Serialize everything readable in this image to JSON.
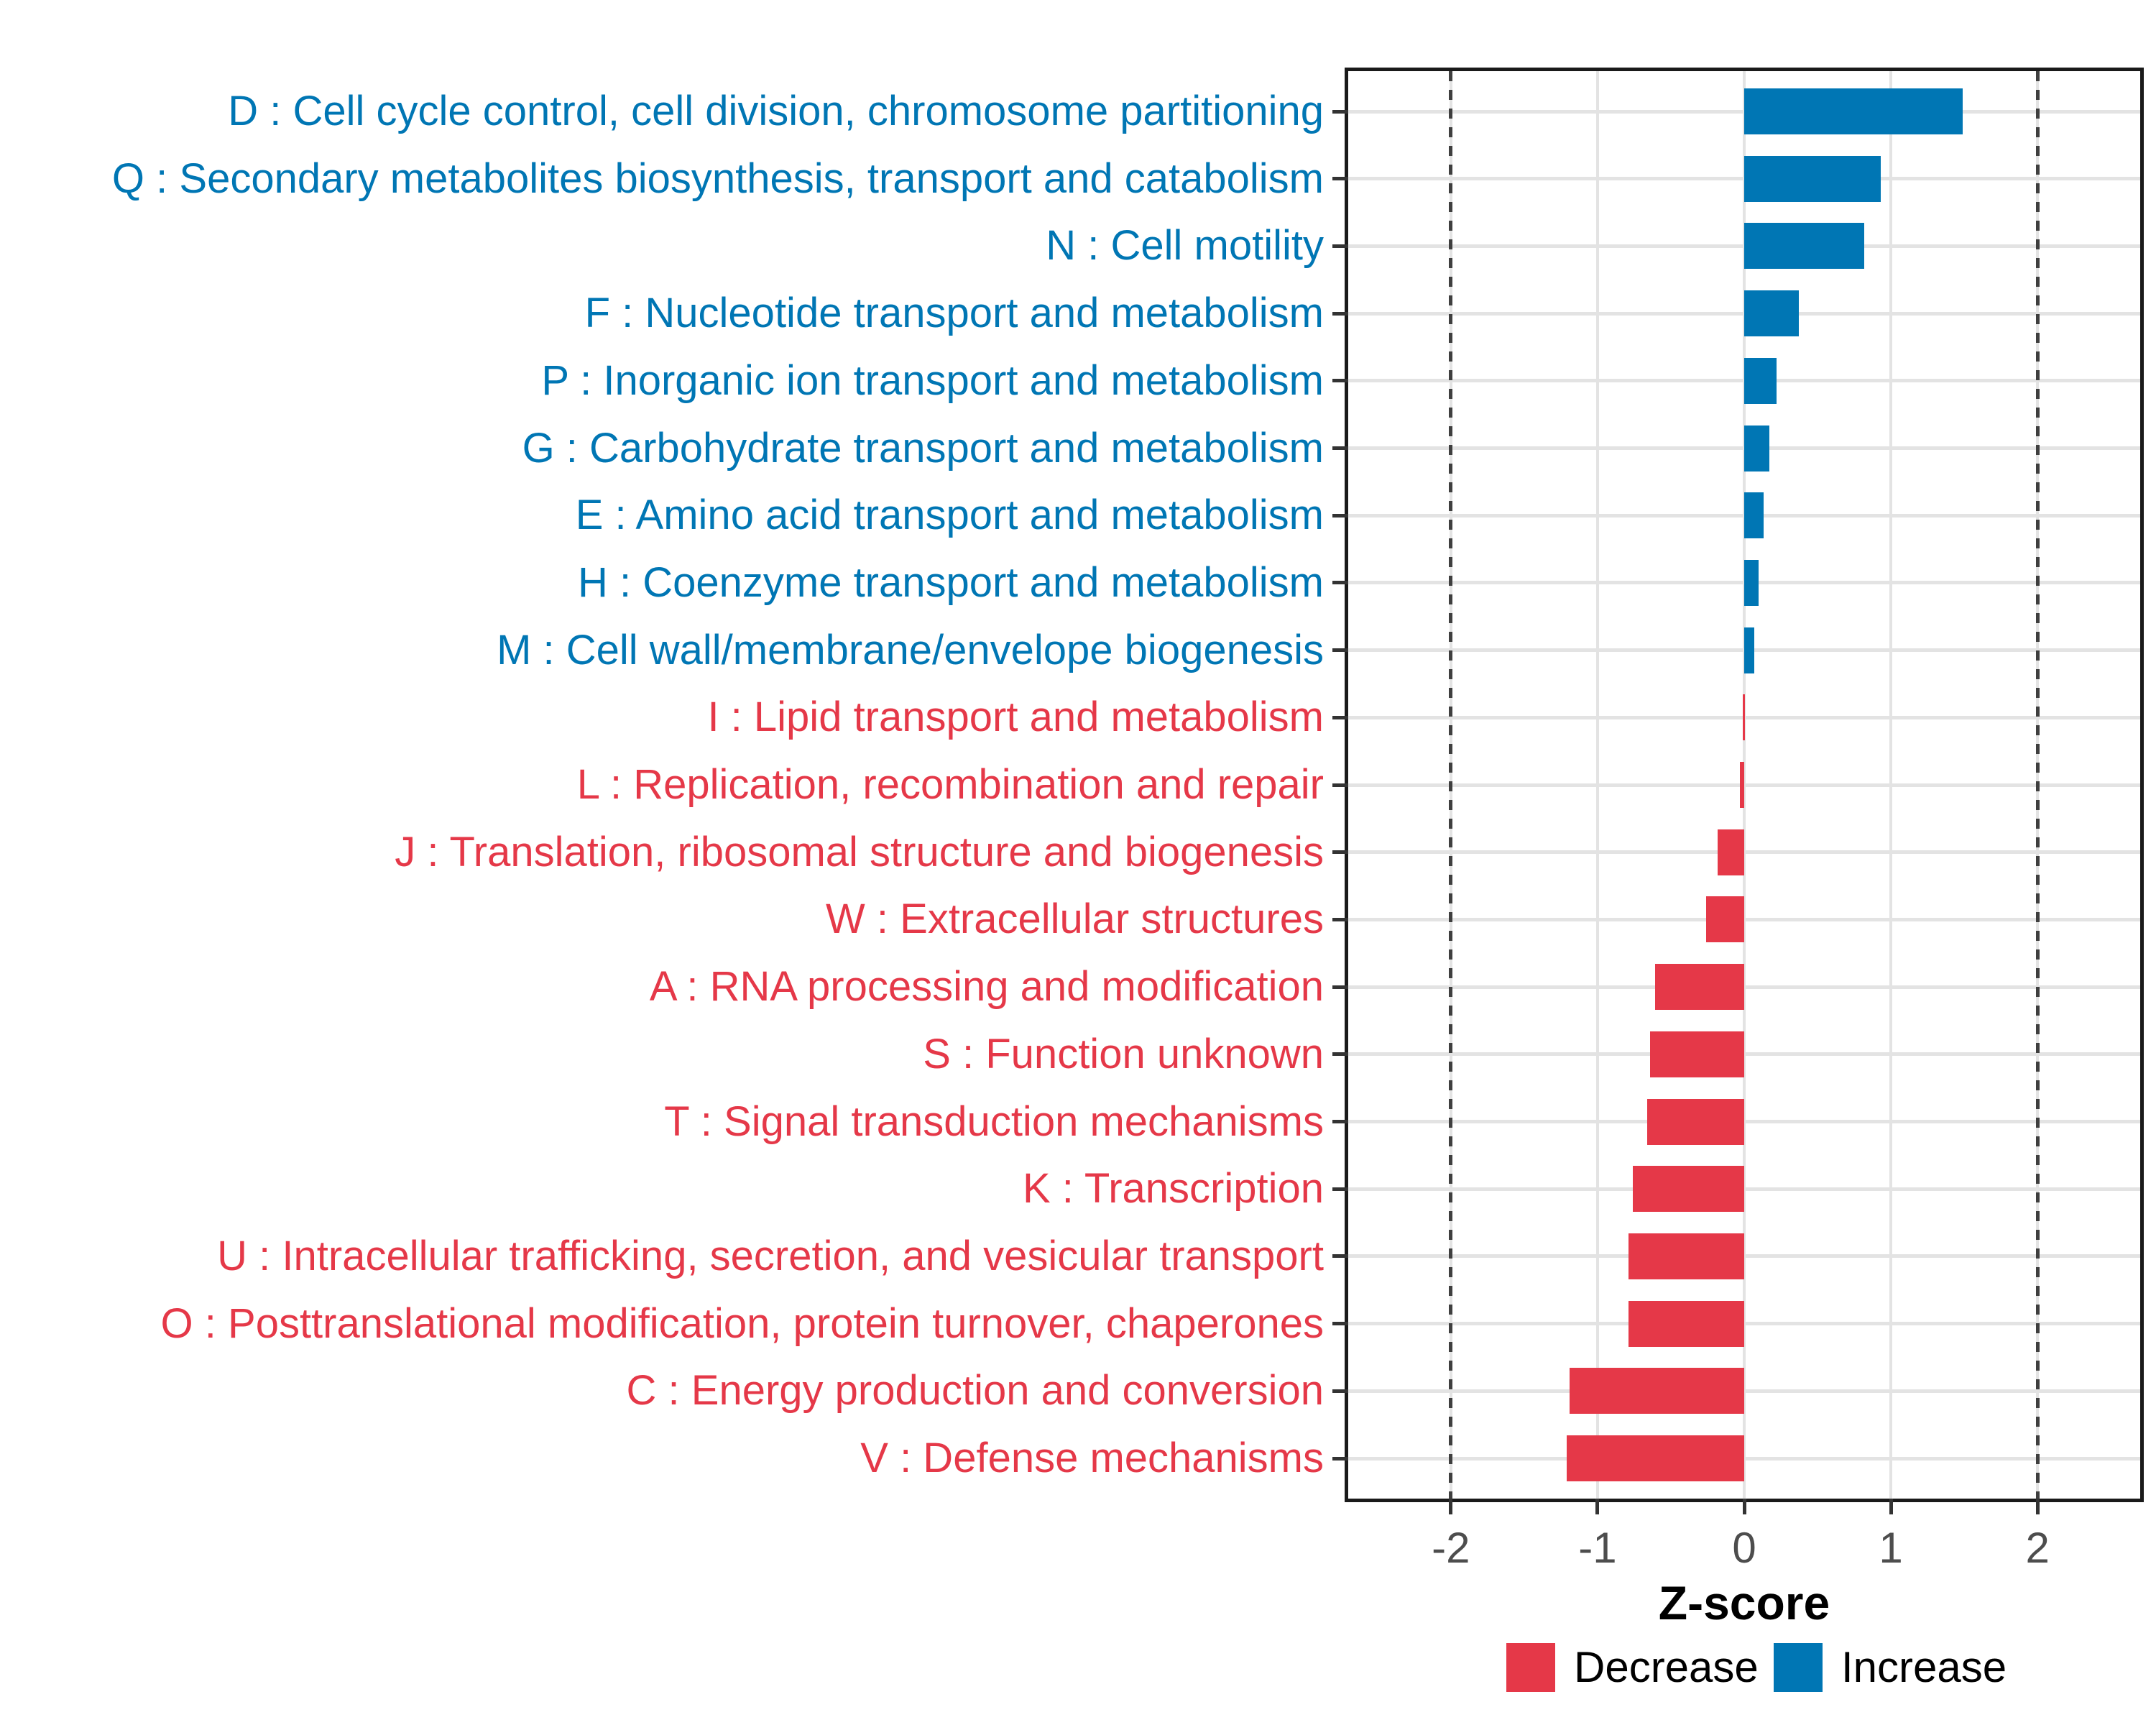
{
  "chart_data": {
    "type": "bar",
    "orientation": "horizontal",
    "title": "",
    "xlabel": "Z-score",
    "ylabel": "",
    "xlim": [
      -2.7,
      2.7
    ],
    "x_ticks": [
      -2,
      -1,
      0,
      1,
      2
    ],
    "reference_lines": [
      -2,
      2
    ],
    "grid": "major gridlines, light gray",
    "legend_position": "bottom-right",
    "legend": [
      {
        "label": "Decrease",
        "color": "#e53848"
      },
      {
        "label": "Increase",
        "color": "#0076b4"
      }
    ],
    "categories": [
      {
        "code": "D",
        "label": "D : Cell cycle control, cell division, chromosome partitioning",
        "value": 1.49,
        "direction": "Increase"
      },
      {
        "code": "Q",
        "label": "Q : Secondary metabolites biosynthesis, transport and catabolism",
        "value": 0.93,
        "direction": "Increase"
      },
      {
        "code": "N",
        "label": "N : Cell motility",
        "value": 0.82,
        "direction": "Increase"
      },
      {
        "code": "F",
        "label": "F : Nucleotide transport and metabolism",
        "value": 0.37,
        "direction": "Increase"
      },
      {
        "code": "P",
        "label": "P : Inorganic ion transport and metabolism",
        "value": 0.22,
        "direction": "Increase"
      },
      {
        "code": "G",
        "label": "G : Carbohydrate transport and metabolism",
        "value": 0.17,
        "direction": "Increase"
      },
      {
        "code": "E",
        "label": "E : Amino acid transport and metabolism",
        "value": 0.13,
        "direction": "Increase"
      },
      {
        "code": "H",
        "label": "H : Coenzyme transport and metabolism",
        "value": 0.1,
        "direction": "Increase"
      },
      {
        "code": "M",
        "label": "M : Cell wall/membrane/envelope biogenesis",
        "value": 0.07,
        "direction": "Increase"
      },
      {
        "code": "I",
        "label": "I : Lipid transport and metabolism",
        "value": -0.01,
        "direction": "Decrease"
      },
      {
        "code": "L",
        "label": "L : Replication, recombination and repair",
        "value": -0.03,
        "direction": "Decrease"
      },
      {
        "code": "J",
        "label": "J : Translation, ribosomal structure and biogenesis",
        "value": -0.18,
        "direction": "Decrease"
      },
      {
        "code": "W",
        "label": "W : Extracellular structures",
        "value": -0.26,
        "direction": "Decrease"
      },
      {
        "code": "A",
        "label": "A : RNA processing and modification",
        "value": -0.61,
        "direction": "Decrease"
      },
      {
        "code": "S",
        "label": "S : Function unknown",
        "value": -0.64,
        "direction": "Decrease"
      },
      {
        "code": "T",
        "label": "T : Signal transduction mechanisms",
        "value": -0.66,
        "direction": "Decrease"
      },
      {
        "code": "K",
        "label": "K : Transcription",
        "value": -0.76,
        "direction": "Decrease"
      },
      {
        "code": "U",
        "label": "U : Intracellular trafficking, secretion, and vesicular transport",
        "value": -0.79,
        "direction": "Decrease"
      },
      {
        "code": "O",
        "label": "O : Posttranslational modification, protein turnover, chaperones",
        "value": -0.79,
        "direction": "Decrease"
      },
      {
        "code": "C",
        "label": "C : Energy production and conversion",
        "value": -1.19,
        "direction": "Decrease"
      },
      {
        "code": "V",
        "label": "V : Defense mechanisms",
        "value": -1.21,
        "direction": "Decrease"
      }
    ]
  },
  "colors": {
    "increase": "#0076b4",
    "decrease": "#e53848",
    "grid": "#e3e3e3",
    "panel_border": "#1a1a1a",
    "reference_line": "#3f3f3f",
    "tick_mark": "#333333",
    "axis_tick_label": "#4d4d4d",
    "axis_title": "#000000",
    "legend_text": "#000000",
    "background": "#ffffff"
  }
}
